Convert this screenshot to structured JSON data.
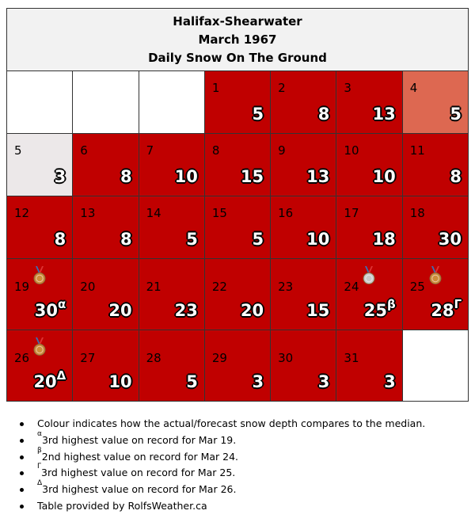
{
  "title": {
    "line1": "Halifax-Shearwater",
    "line2": "March 1967",
    "line3": "Daily Snow On The Ground"
  },
  "colors": {
    "above_median": "#c00000",
    "near_median": "#dd6851",
    "below_median": "#ece8e9",
    "empty": "#ffffff"
  },
  "calendar": [
    [
      {
        "day": "",
        "value": "",
        "shade": "empty"
      },
      {
        "day": "",
        "value": "",
        "shade": "empty"
      },
      {
        "day": "",
        "value": "",
        "shade": "empty"
      },
      {
        "day": "1",
        "value": "5",
        "shade": "red"
      },
      {
        "day": "2",
        "value": "8",
        "shade": "red"
      },
      {
        "day": "3",
        "value": "13",
        "shade": "red"
      },
      {
        "day": "4",
        "value": "5",
        "shade": "salmon"
      }
    ],
    [
      {
        "day": "5",
        "value": "3",
        "shade": "pale"
      },
      {
        "day": "6",
        "value": "8",
        "shade": "red"
      },
      {
        "day": "7",
        "value": "10",
        "shade": "red"
      },
      {
        "day": "8",
        "value": "15",
        "shade": "red"
      },
      {
        "day": "9",
        "value": "13",
        "shade": "red"
      },
      {
        "day": "10",
        "value": "10",
        "shade": "red"
      },
      {
        "day": "11",
        "value": "8",
        "shade": "red"
      }
    ],
    [
      {
        "day": "12",
        "value": "8",
        "shade": "red"
      },
      {
        "day": "13",
        "value": "8",
        "shade": "red"
      },
      {
        "day": "14",
        "value": "5",
        "shade": "red"
      },
      {
        "day": "15",
        "value": "5",
        "shade": "red"
      },
      {
        "day": "16",
        "value": "10",
        "shade": "red"
      },
      {
        "day": "17",
        "value": "18",
        "shade": "red"
      },
      {
        "day": "18",
        "value": "30",
        "shade": "red"
      }
    ],
    [
      {
        "day": "19",
        "value": "30",
        "sup": "α",
        "medal": "bronze-medal-icon",
        "shade": "red"
      },
      {
        "day": "20",
        "value": "20",
        "shade": "red"
      },
      {
        "day": "21",
        "value": "23",
        "shade": "red"
      },
      {
        "day": "22",
        "value": "20",
        "shade": "red"
      },
      {
        "day": "23",
        "value": "15",
        "shade": "red"
      },
      {
        "day": "24",
        "value": "25",
        "sup": "β",
        "medal": "silver-medal-icon",
        "shade": "red"
      },
      {
        "day": "25",
        "value": "28",
        "sup": "Γ",
        "medal": "bronze-medal-icon",
        "shade": "red"
      }
    ],
    [
      {
        "day": "26",
        "value": "20",
        "sup": "Δ",
        "medal": "bronze-medal-icon",
        "shade": "red"
      },
      {
        "day": "27",
        "value": "10",
        "shade": "red"
      },
      {
        "day": "28",
        "value": "5",
        "shade": "red"
      },
      {
        "day": "29",
        "value": "3",
        "shade": "red"
      },
      {
        "day": "30",
        "value": "3",
        "shade": "red"
      },
      {
        "day": "31",
        "value": "3",
        "shade": "red"
      },
      {
        "day": "",
        "value": "",
        "shade": "empty"
      }
    ]
  ],
  "notes": [
    {
      "sup": "",
      "text": "Colour indicates how the actual/forecast snow depth compares to the median."
    },
    {
      "sup": "α",
      "text": "3rd highest value on record for Mar 19."
    },
    {
      "sup": "β",
      "text": "2nd highest value on record for Mar 24."
    },
    {
      "sup": "Γ",
      "text": "3rd highest value on record for Mar 25."
    },
    {
      "sup": "Δ",
      "text": "3rd highest value on record for Mar 26."
    },
    {
      "sup": "",
      "text": "Table provided by RolfsWeather.ca"
    }
  ]
}
